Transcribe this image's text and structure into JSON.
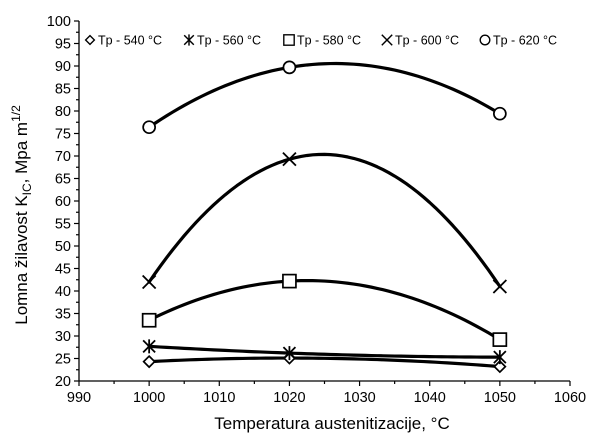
{
  "chart_data": {
    "type": "line",
    "xlabel": "Temperatura austenitizacije, °C",
    "ylabel_main": "Lomna žilavost K",
    "ylabel_sub": "IC",
    "ylabel_rest": ", Mpa m",
    "ylabel_sup": "1/2",
    "xlim": [
      990,
      1060
    ],
    "ylim": [
      20,
      100
    ],
    "x_ticks": [
      990,
      1000,
      1010,
      1020,
      1030,
      1040,
      1050,
      1060
    ],
    "y_ticks": [
      20,
      25,
      30,
      35,
      40,
      45,
      50,
      55,
      60,
      65,
      70,
      75,
      80,
      85,
      90,
      95,
      100
    ],
    "x": [
      1000,
      1020,
      1050
    ],
    "legend_position": "top",
    "series": [
      {
        "name": "Tp - 540 °C",
        "marker": "diamond",
        "values": [
          24.3,
          25.1,
          23.2
        ]
      },
      {
        "name": "Tp - 560 °C",
        "marker": "asterisk",
        "values": [
          27.7,
          26.2,
          25.3
        ]
      },
      {
        "name": "Tp - 580 °C",
        "marker": "square",
        "values": [
          33.5,
          42.2,
          29.2
        ]
      },
      {
        "name": "Tp - 600 °C",
        "marker": "x",
        "values": [
          42.0,
          69.3,
          41.0
        ]
      },
      {
        "name": "Tp - 620 °C",
        "marker": "circle",
        "values": [
          76.4,
          89.7,
          79.4
        ]
      }
    ]
  }
}
